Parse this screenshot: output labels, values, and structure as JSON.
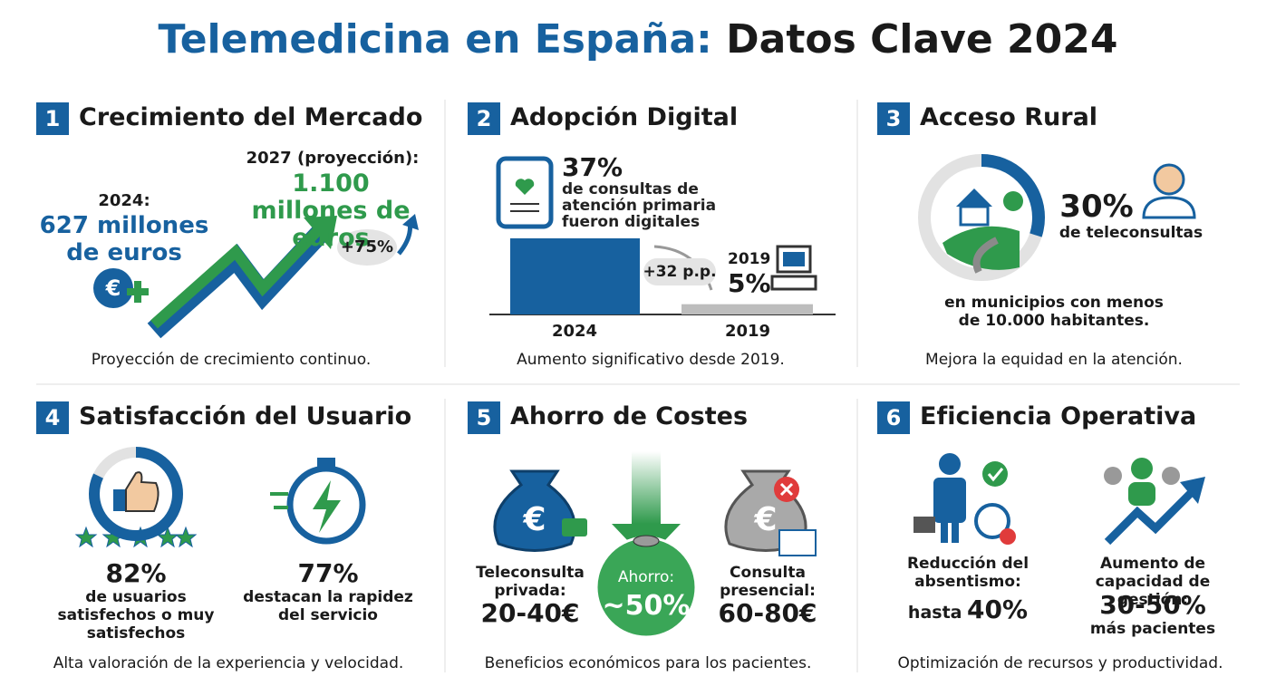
{
  "title": {
    "part1": "Telemedicina en España:",
    "part2": "Datos Clave 2024"
  },
  "panels": [
    {
      "number": "1",
      "heading": "Crecimiento del Mercado",
      "left_label": "2024:",
      "left_value": "627 millones de euros",
      "right_label": "2027 (proyección):",
      "right_value": "1.100 millones de euros",
      "growth": "+75%",
      "caption": "Proyección de crecimiento continuo."
    },
    {
      "number": "2",
      "heading": "Adopción Digital",
      "text": "de consultas de atención primaria fueron digitales",
      "change": "+32 p.p.",
      "inset_year": "2019",
      "chart": {
        "categories": [
          "2024",
          "2019"
        ],
        "values": [
          37,
          5
        ],
        "value_labels": [
          "37%",
          "5%"
        ]
      },
      "caption": "Aumento significativo desde 2019."
    },
    {
      "number": "3",
      "heading": "Acceso Rural",
      "value": 30,
      "value_label": "30%",
      "text": "de teleconsultas",
      "detail": "en municipios con menos de 10.000 habitantes.",
      "caption": "Mejora la equidad en la atención."
    },
    {
      "number": "4",
      "heading": "Satisfacción del Usuario",
      "items": [
        {
          "value": 82,
          "value_label": "82%",
          "text": "de usuarios satisfechos o muy satisfechos"
        },
        {
          "value_label": "77%",
          "text": "destacan la rapidez del servicio"
        }
      ],
      "caption": "Alta valoración de la experiencia y velocidad."
    },
    {
      "number": "5",
      "heading": "Ahorro de Costes",
      "left_label": "Teleconsulta privada:",
      "left_value": "20-40€",
      "center_label": "Ahorro:",
      "center_value": "~50%",
      "right_label": "Consulta presencial:",
      "right_value": "60-80€",
      "caption": "Beneficios económicos para los pacientes."
    },
    {
      "number": "6",
      "heading": "Eficiencia Operativa",
      "items": [
        {
          "label": "Reducción del absentismo:",
          "prefix": "hasta",
          "value": "40%"
        },
        {
          "label": "Aumento de capacidad de gestión:",
          "value": "30-50%",
          "suffix": "más pacientes"
        }
      ],
      "caption": "Optimización de recursos y productividad."
    }
  ]
}
